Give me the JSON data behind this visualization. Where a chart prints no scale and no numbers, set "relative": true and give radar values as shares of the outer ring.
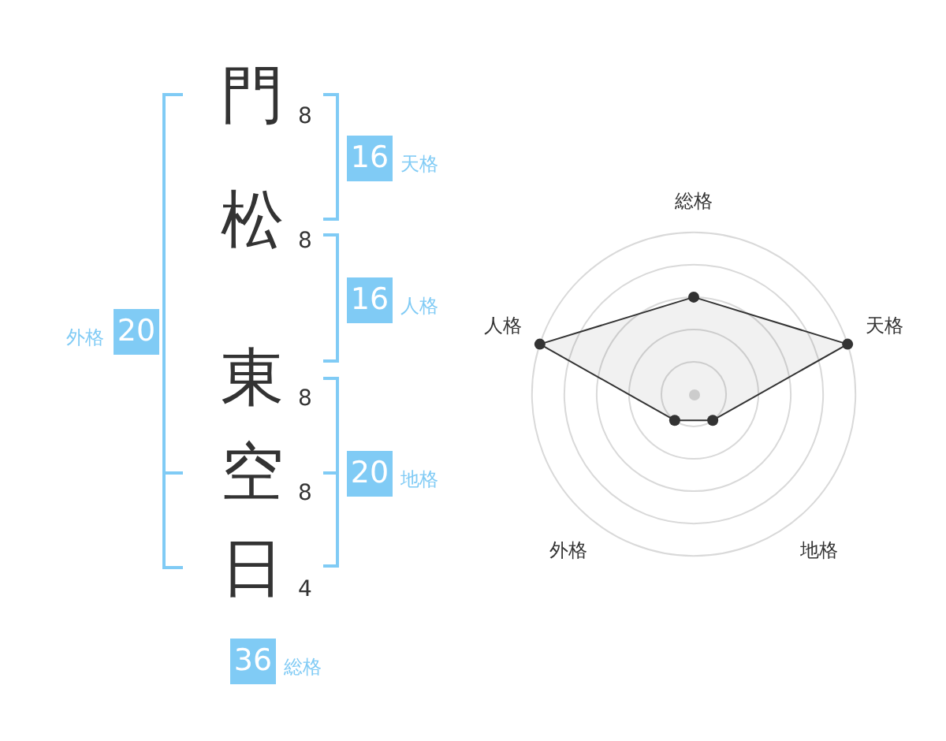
{
  "chart_data": [
    {
      "type": "other",
      "categories": [
        "門",
        "松",
        "東",
        "空",
        "日"
      ],
      "values": [
        8,
        8,
        8,
        8,
        4
      ],
      "data_labels": true
    },
    {
      "type": "other",
      "categories": [
        "天格",
        "人格",
        "地格",
        "外格",
        "総格"
      ],
      "values": [
        16,
        16,
        20,
        20,
        36
      ],
      "data_labels": true,
      "color": "#80cbf5"
    },
    {
      "type": "radar",
      "categories": [
        "総格",
        "天格",
        "地格",
        "外格",
        "人格"
      ],
      "relative": true,
      "grid": true,
      "marker": "circle",
      "series": [
        {
          "color": "#333333",
          "values": [
            0.6,
            1,
            0.2,
            0.2,
            1
          ]
        }
      ]
    }
  ]
}
